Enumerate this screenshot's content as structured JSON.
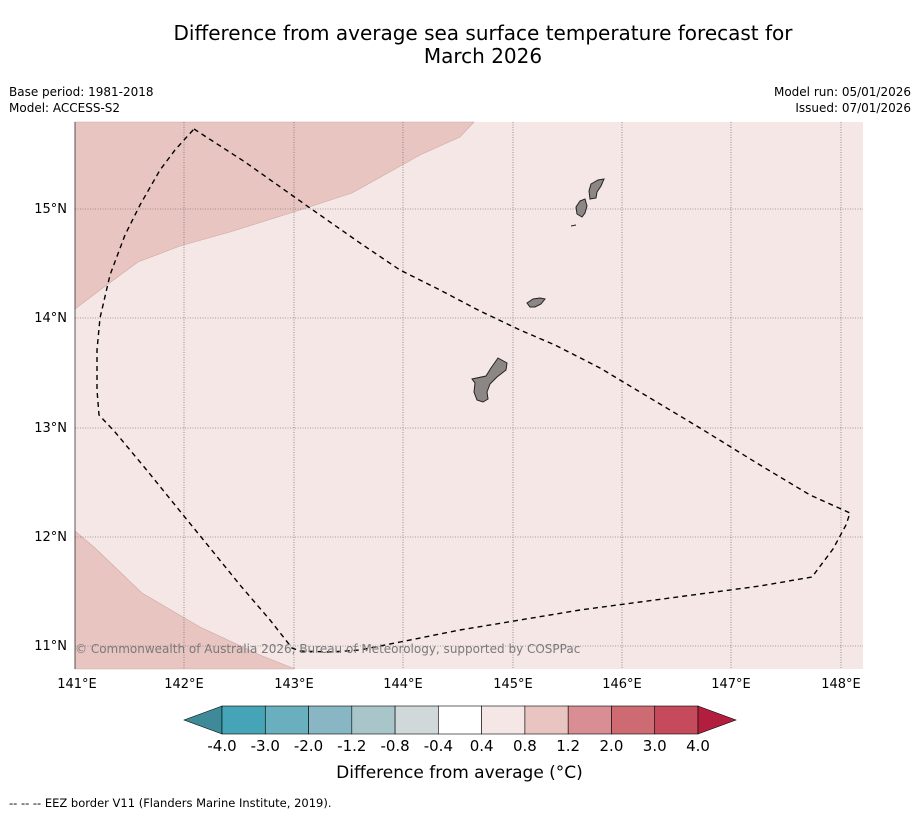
{
  "title_line1": "Difference from average sea surface temperature forecast for",
  "title_line2": "March 2026",
  "base_period": "Base period: 1981-2018",
  "model": "Model: ACCESS-S2",
  "model_run": "Model run: 05/01/2026",
  "issued": "Issued: 07/01/2026",
  "copyright": "© Commonwealth of Australia 2026, Bureau of Meteorology, supported by COSPPac",
  "lon_labels": [
    "141°E",
    "142°E",
    "143°E",
    "144°E",
    "145°E",
    "146°E",
    "147°E",
    "148°E"
  ],
  "lat_labels": [
    "15°N",
    "14°N",
    "13°N",
    "12°N",
    "11°N"
  ],
  "colorbar": {
    "labels": [
      "-4.0",
      "-3.0",
      "-2.0",
      "-1.2",
      "-0.8",
      "-0.4",
      "0.4",
      "0.8",
      "1.2",
      "2.0",
      "3.0",
      "4.0"
    ],
    "colors": [
      "#45a5b6",
      "#6aafbd",
      "#88b6c2",
      "#a8c6ca",
      "#d1d8d9",
      "#ffffff",
      "#f4e7e6",
      "#e8c5c1",
      "#d98e94",
      "#cd6a72",
      "#c44a5c"
    ],
    "under_color": "#3f8a99",
    "over_color": "#b21f3e",
    "title": "Difference from average ($^\\circ$C)",
    "title_display": "Difference from average (°C)"
  },
  "legend_eez": "--  --  -- EEZ border V11 (Flanders Marine Institute, 2019).",
  "colors": {
    "anomaly_0_4_to_0_8": "#f4e7e6",
    "anomaly_0_8_to_1_2": "#e8c5c1",
    "land": "#8c8785"
  }
}
